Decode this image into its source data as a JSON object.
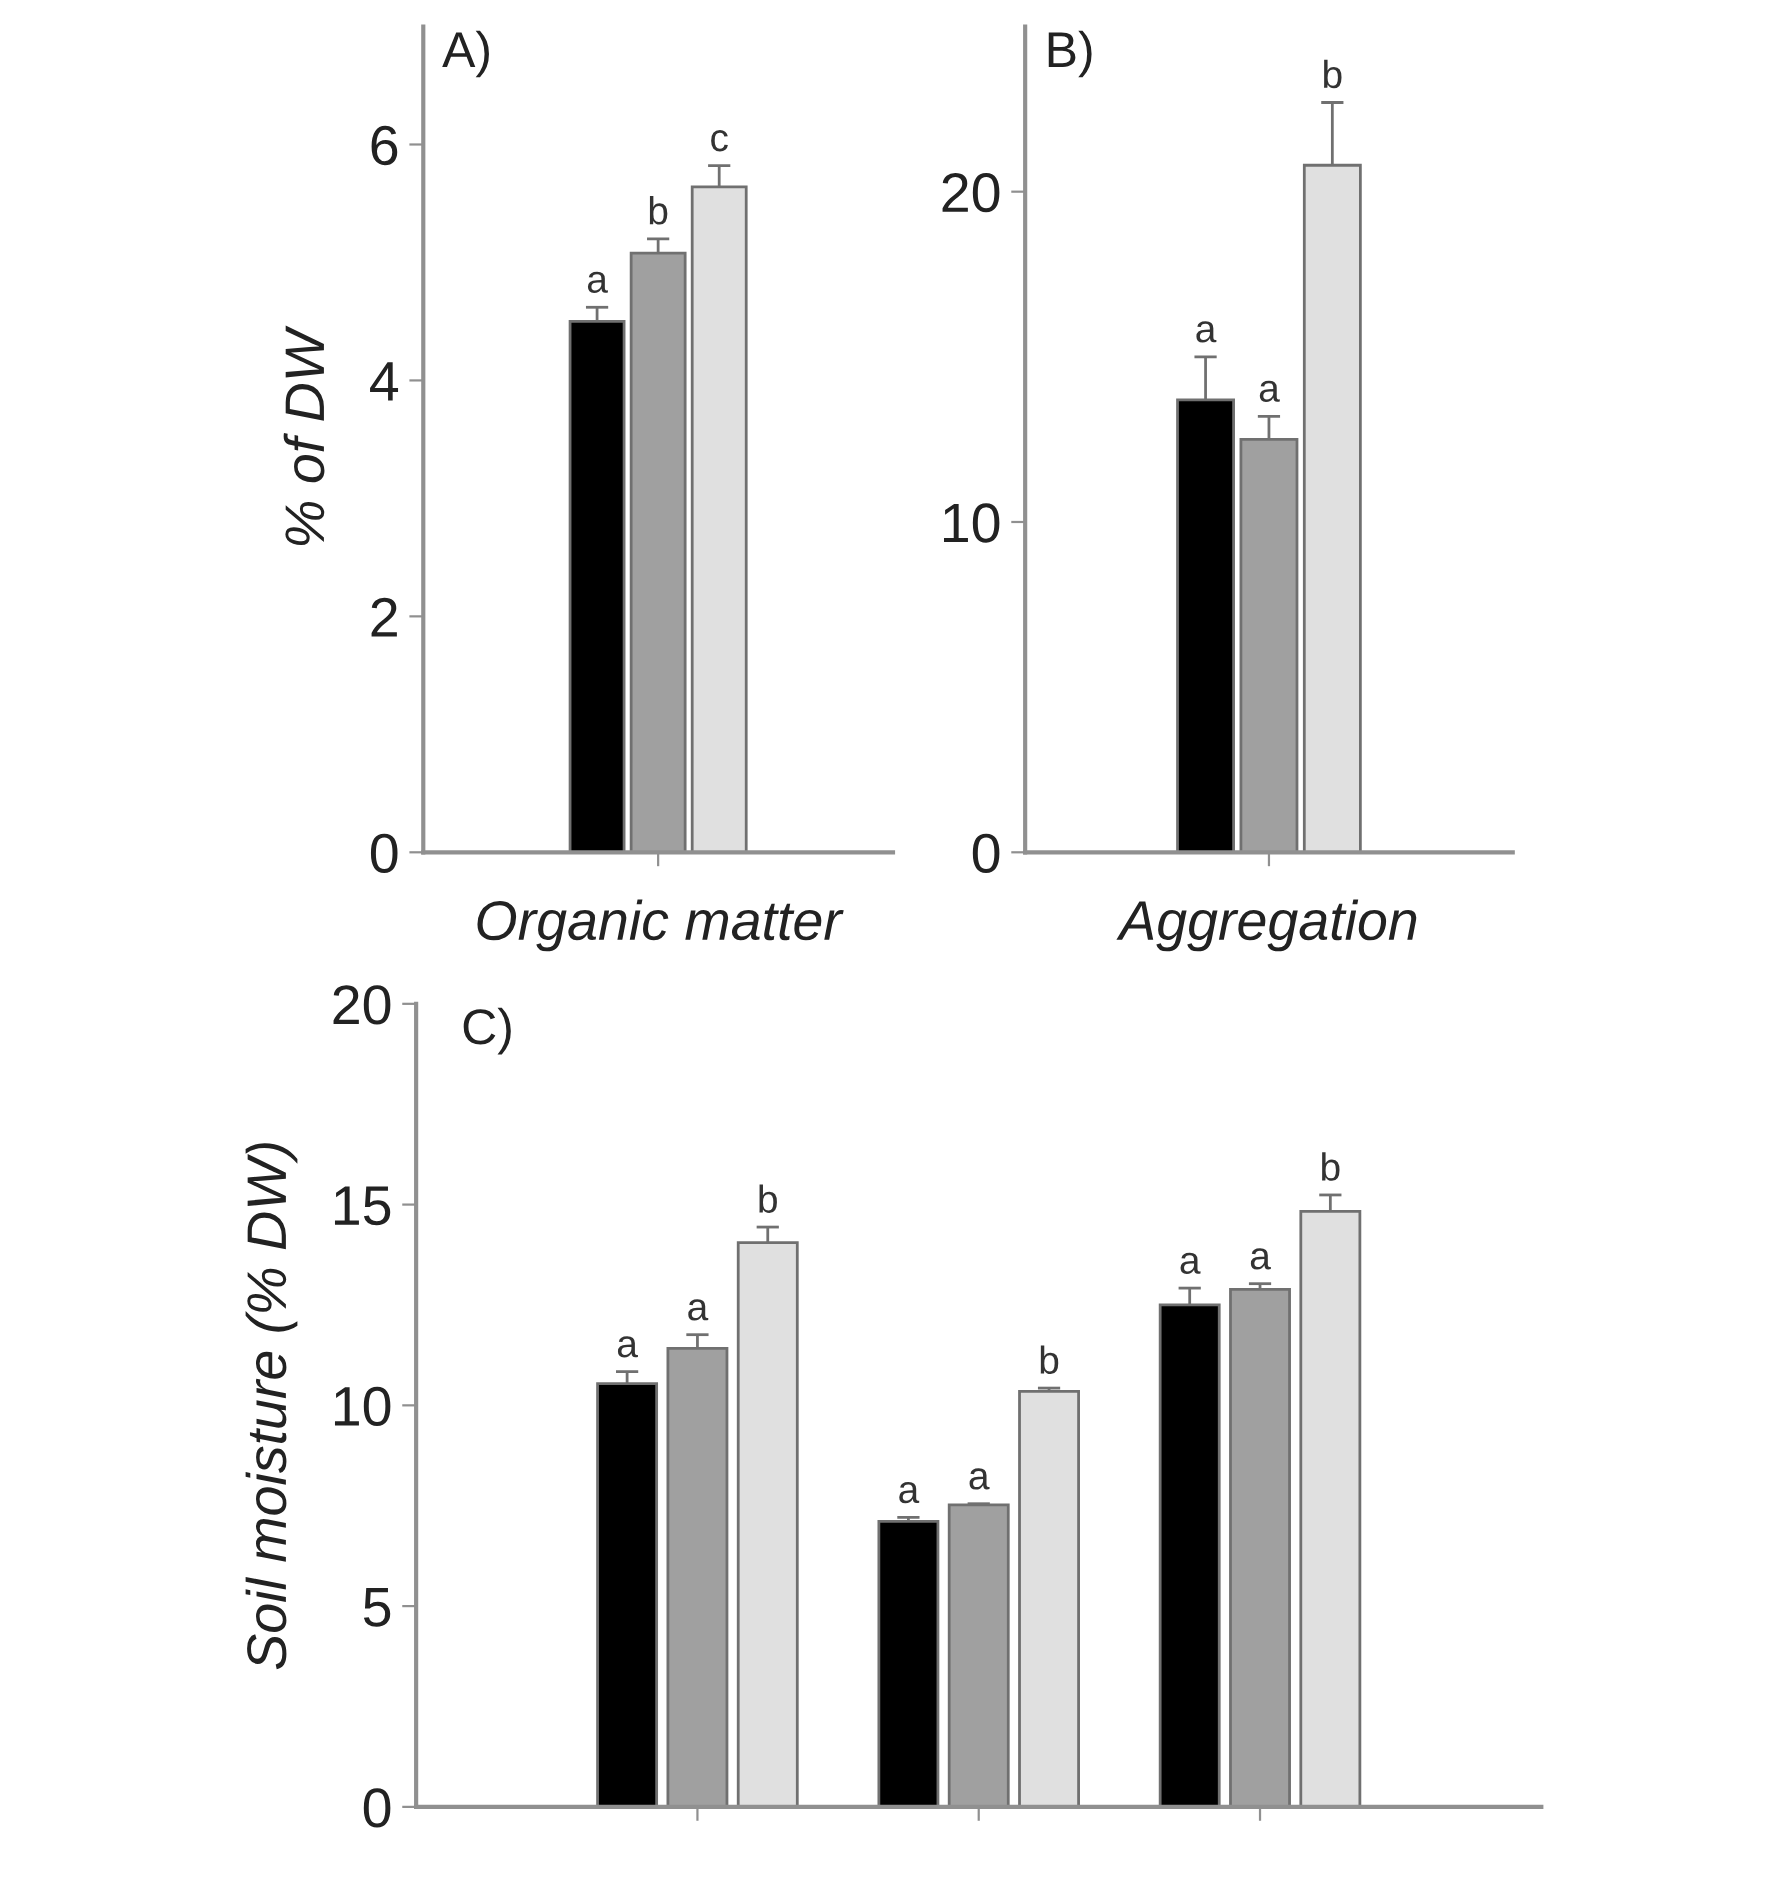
{
  "chart_data": [
    {
      "type": "bar",
      "title": "A)",
      "ylabel": "% of DW",
      "categories": [
        "Organic matter"
      ],
      "ylim": [
        0,
        7
      ],
      "yticks": [
        0,
        2,
        4,
        6
      ],
      "series": [
        {
          "color": "#000000",
          "values": [
            4.5
          ],
          "errors": [
            0.12
          ],
          "value_labels": [
            "a"
          ]
        },
        {
          "color": "#a0a0a0",
          "values": [
            5.08
          ],
          "errors": [
            0.12
          ],
          "value_labels": [
            "b"
          ]
        },
        {
          "color": "#e0e0e0",
          "values": [
            5.64
          ],
          "errors": [
            0.18
          ],
          "value_labels": [
            "c"
          ]
        }
      ]
    },
    {
      "type": "bar",
      "title": "B)",
      "categories": [
        "Aggregation"
      ],
      "ylim": [
        0,
        25
      ],
      "yticks": [
        0,
        10,
        20
      ],
      "series": [
        {
          "color": "#000000",
          "values": [
            13.7
          ],
          "errors": [
            1.3
          ],
          "value_labels": [
            "a"
          ]
        },
        {
          "color": "#a0a0a0",
          "values": [
            12.5
          ],
          "errors": [
            0.7
          ],
          "value_labels": [
            "a"
          ]
        },
        {
          "color": "#e0e0e0",
          "values": [
            20.8
          ],
          "errors": [
            1.9
          ],
          "value_labels": [
            "b"
          ]
        }
      ]
    },
    {
      "type": "bar",
      "title": "C)",
      "ylabel": "Soil moisture (% DW)",
      "categories": [
        null,
        null,
        null
      ],
      "ylim": [
        0,
        20
      ],
      "yticks": [
        0,
        5,
        10,
        15,
        20
      ],
      "series": [
        {
          "color": "#000000",
          "values": [
            10.54,
            7.11,
            12.5
          ],
          "errors": [
            0.3,
            0.1,
            0.42
          ],
          "value_labels": [
            "a",
            "a",
            "a"
          ]
        },
        {
          "color": "#a0a0a0",
          "values": [
            11.42,
            7.52,
            12.89
          ],
          "errors": [
            0.34,
            0.03,
            0.14
          ],
          "value_labels": [
            "a",
            "a",
            "a"
          ]
        },
        {
          "color": "#e0e0e0",
          "values": [
            14.05,
            10.35,
            14.83
          ],
          "errors": [
            0.39,
            0.08,
            0.41
          ],
          "value_labels": [
            "b",
            "b",
            "b"
          ]
        }
      ]
    }
  ]
}
